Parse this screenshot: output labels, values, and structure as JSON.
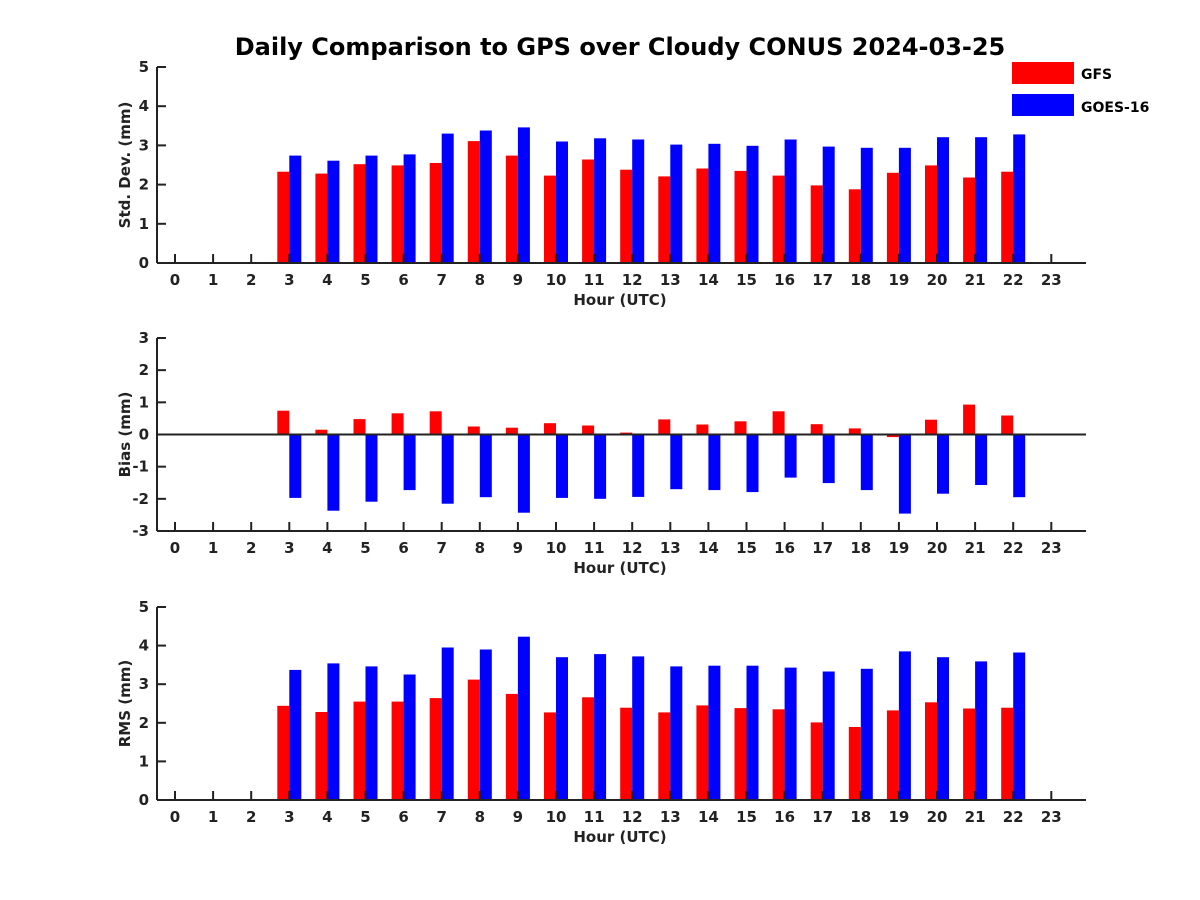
{
  "title": "Daily Comparison to GPS over Cloudy CONUS 2024-03-25",
  "legend": {
    "position": "top-right",
    "items": [
      {
        "label": "GFS",
        "color": "#ff0000"
      },
      {
        "label": "GOES-16",
        "color": "#0000ff"
      }
    ]
  },
  "chart_data": [
    {
      "type": "bar",
      "xlabel": "Hour (UTC)",
      "ylabel": "Std. Dev. (mm)",
      "ylim": [
        0,
        5
      ],
      "yticks": [
        0,
        1,
        2,
        3,
        4,
        5
      ],
      "grid": false,
      "categories": [
        "0",
        "1",
        "2",
        "3",
        "4",
        "5",
        "6",
        "7",
        "8",
        "9",
        "10",
        "11",
        "12",
        "13",
        "14",
        "15",
        "16",
        "17",
        "18",
        "19",
        "20",
        "21",
        "22",
        "23"
      ],
      "series": [
        {
          "name": "GFS",
          "color": "#ff0000",
          "values": [
            null,
            null,
            null,
            2.33,
            2.28,
            2.52,
            2.49,
            2.55,
            3.11,
            2.74,
            2.23,
            2.64,
            2.38,
            2.21,
            2.41,
            2.35,
            2.23,
            1.98,
            1.88,
            2.3,
            2.49,
            2.18,
            2.33,
            null
          ]
        },
        {
          "name": "GOES-16",
          "color": "#0000ff",
          "values": [
            null,
            null,
            null,
            2.74,
            2.61,
            2.74,
            2.77,
            3.3,
            3.38,
            3.46,
            3.1,
            3.18,
            3.15,
            3.02,
            3.04,
            2.99,
            3.15,
            2.97,
            2.94,
            2.94,
            3.21,
            3.21,
            3.28,
            null
          ]
        }
      ]
    },
    {
      "type": "bar",
      "xlabel": "Hour (UTC)",
      "ylabel": "Bias (mm)",
      "ylim": [
        -3,
        3
      ],
      "yticks": [
        -3,
        -2,
        -1,
        0,
        1,
        2,
        3
      ],
      "grid": false,
      "zero_line": true,
      "categories": [
        "0",
        "1",
        "2",
        "3",
        "4",
        "5",
        "6",
        "7",
        "8",
        "9",
        "10",
        "11",
        "12",
        "13",
        "14",
        "15",
        "16",
        "17",
        "18",
        "19",
        "20",
        "21",
        "22",
        "23"
      ],
      "series": [
        {
          "name": "GFS",
          "color": "#ff0000",
          "values": [
            null,
            null,
            null,
            0.74,
            0.15,
            0.48,
            0.66,
            0.72,
            0.25,
            0.21,
            0.35,
            0.28,
            0.06,
            0.47,
            0.31,
            0.41,
            0.72,
            0.32,
            0.19,
            -0.08,
            0.46,
            0.93,
            0.59,
            null
          ]
        },
        {
          "name": "GOES-16",
          "color": "#0000ff",
          "values": [
            null,
            null,
            null,
            -1.97,
            -2.37,
            -2.09,
            -1.73,
            -2.15,
            -1.95,
            -2.43,
            -1.97,
            -2.0,
            -1.94,
            -1.7,
            -1.73,
            -1.79,
            -1.34,
            -1.51,
            -1.73,
            -2.46,
            -1.84,
            -1.57,
            -1.95,
            null
          ]
        }
      ]
    },
    {
      "type": "bar",
      "xlabel": "Hour (UTC)",
      "ylabel": "RMS (mm)",
      "ylim": [
        0,
        5
      ],
      "yticks": [
        0,
        1,
        2,
        3,
        4,
        5
      ],
      "grid": false,
      "categories": [
        "0",
        "1",
        "2",
        "3",
        "4",
        "5",
        "6",
        "7",
        "8",
        "9",
        "10",
        "11",
        "12",
        "13",
        "14",
        "15",
        "16",
        "17",
        "18",
        "19",
        "20",
        "21",
        "22",
        "23"
      ],
      "series": [
        {
          "name": "GFS",
          "color": "#ff0000",
          "values": [
            null,
            null,
            null,
            2.44,
            2.28,
            2.55,
            2.55,
            2.64,
            3.12,
            2.75,
            2.27,
            2.66,
            2.39,
            2.27,
            2.45,
            2.38,
            2.35,
            2.01,
            1.89,
            2.32,
            2.53,
            2.37,
            2.39,
            null
          ]
        },
        {
          "name": "GOES-16",
          "color": "#0000ff",
          "values": [
            null,
            null,
            null,
            3.37,
            3.54,
            3.46,
            3.25,
            3.95,
            3.9,
            4.23,
            3.7,
            3.78,
            3.72,
            3.46,
            3.48,
            3.48,
            3.43,
            3.33,
            3.4,
            3.85,
            3.7,
            3.59,
            3.82,
            null
          ]
        }
      ]
    }
  ]
}
